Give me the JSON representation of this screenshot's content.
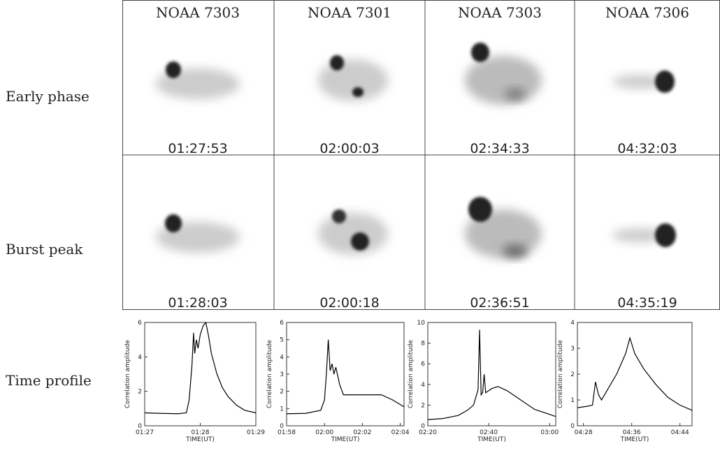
{
  "row_labels": [
    "Early phase",
    "Burst peak",
    "Time profile"
  ],
  "columns": [
    {
      "title": "NOAA 7303",
      "early_time": "01:27:53",
      "peak_time": "01:28:03"
    },
    {
      "title": "NOAA 7301",
      "early_time": "02:00:03",
      "peak_time": "02:00:18"
    },
    {
      "title": "NOAA 7303",
      "early_time": "02:34:33",
      "peak_time": "02:36:51"
    },
    {
      "title": "NOAA 7306",
      "early_time": "04:32:03",
      "peak_time": "04:35:19"
    }
  ],
  "chart_data": [
    {
      "type": "line",
      "xlabel": "TIME(UT)",
      "ylabel": "Correlation amplitude",
      "color": "#000000",
      "x": [
        87,
        87.3,
        87.6,
        87.75,
        87.8,
        87.85,
        87.88,
        87.9,
        87.93,
        87.96,
        88.0,
        88.05,
        88.1,
        88.15,
        88.2,
        88.3,
        88.4,
        88.5,
        88.65,
        88.8,
        89
      ],
      "values": [
        0.75,
        0.72,
        0.7,
        0.75,
        1.5,
        3.5,
        5.4,
        4.2,
        5.0,
        4.5,
        5.3,
        5.8,
        6.0,
        5.2,
        4.2,
        3.0,
        2.2,
        1.7,
        1.2,
        0.9,
        0.75
      ],
      "xlim": [
        87,
        89
      ],
      "xticks": [
        {
          "value": 87,
          "label": "01:27"
        },
        {
          "value": 88,
          "label": "01:28"
        },
        {
          "value": 89,
          "label": "01:29"
        }
      ],
      "ylim": [
        0,
        6
      ],
      "yticks": [
        0,
        2,
        4,
        6
      ]
    },
    {
      "type": "line",
      "xlabel": "TIME(UT)",
      "ylabel": "Correlation amplitude",
      "color": "#000000",
      "x": [
        118,
        119,
        119.8,
        120.0,
        120.1,
        120.2,
        120.3,
        120.4,
        120.5,
        120.6,
        120.8,
        121,
        122,
        123,
        123.6,
        124.2
      ],
      "values": [
        0.7,
        0.72,
        0.9,
        1.5,
        3.0,
        5.0,
        3.2,
        3.6,
        3.0,
        3.4,
        2.4,
        1.8,
        1.8,
        1.8,
        1.5,
        1.1
      ],
      "xlim": [
        118,
        124.2
      ],
      "xticks": [
        {
          "value": 118,
          "label": "01:58"
        },
        {
          "value": 120,
          "label": "02:00"
        },
        {
          "value": 122,
          "label": "02:02"
        },
        {
          "value": 124,
          "label": "02:04"
        }
      ],
      "ylim": [
        0,
        6
      ],
      "yticks": [
        0,
        1,
        2,
        3,
        4,
        5,
        6
      ]
    },
    {
      "type": "line",
      "xlabel": "TIME(UT)",
      "ylabel": "Correlation amplitude",
      "color": "#000000",
      "x": [
        140,
        145,
        150,
        153,
        155,
        156.5,
        157,
        157.5,
        158,
        158.5,
        159,
        159.5,
        161,
        163,
        166,
        170,
        175,
        182
      ],
      "values": [
        0.6,
        0.7,
        1.0,
        1.5,
        2.0,
        3.5,
        9.3,
        3.0,
        3.2,
        5.0,
        3.2,
        3.3,
        3.6,
        3.8,
        3.4,
        2.6,
        1.6,
        0.9
      ],
      "xlim": [
        140,
        182
      ],
      "xticks": [
        {
          "value": 140,
          "label": "02:20"
        },
        {
          "value": 160,
          "label": "02:40"
        },
        {
          "value": 180,
          "label": "03:00"
        }
      ],
      "ylim": [
        0,
        10
      ],
      "yticks": [
        0,
        2,
        4,
        6,
        8,
        10
      ]
    },
    {
      "type": "line",
      "xlabel": "TIME(UT)",
      "ylabel": "Correlation amplitude",
      "color": "#000000",
      "x": [
        267,
        268.5,
        269.5,
        270,
        270.5,
        271,
        272,
        273.5,
        275,
        275.7,
        276.5,
        278,
        280,
        282,
        284,
        286
      ],
      "values": [
        0.7,
        0.75,
        0.8,
        1.7,
        1.2,
        1.0,
        1.4,
        2.0,
        2.8,
        3.4,
        2.8,
        2.2,
        1.6,
        1.1,
        0.8,
        0.6
      ],
      "xlim": [
        267,
        286
      ],
      "xticks": [
        {
          "value": 268,
          "label": "04:28"
        },
        {
          "value": 276,
          "label": "04:36"
        },
        {
          "value": 284,
          "label": "04:44"
        }
      ],
      "ylim": [
        0,
        4
      ],
      "yticks": [
        0,
        1,
        2,
        3,
        4
      ]
    }
  ]
}
